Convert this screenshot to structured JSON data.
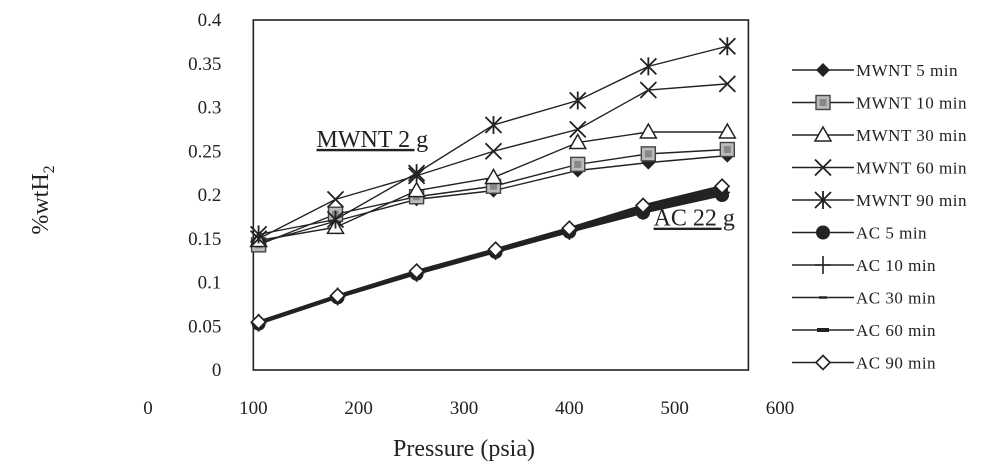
{
  "chart_data": {
    "type": "line",
    "xlabel": "Pressure (psia)",
    "ylabel_main": "%wtH",
    "ylabel_sub": "2",
    "xlim": [
      0,
      600
    ],
    "ylim": [
      0,
      0.4
    ],
    "xticks": [
      "0",
      "100",
      "200",
      "300",
      "400",
      "500",
      "600"
    ],
    "yticks": [
      "0",
      "0.05",
      "0.1",
      "0.15",
      "0.2",
      "0.25",
      "0.3",
      "0.35",
      "0.4"
    ],
    "grid": false,
    "legend_position": "right",
    "annotations": [
      {
        "text": "MWNT 2 g",
        "x": 160,
        "y": 0.255
      },
      {
        "text": "AC 22 g",
        "x": 480,
        "y": 0.165
      }
    ],
    "series": [
      {
        "name": "MWNT 5 min",
        "marker": "diamond-filled",
        "x": [
          105,
          178,
          255,
          328,
          408,
          475,
          550
        ],
        "y": [
          0.145,
          0.17,
          0.195,
          0.205,
          0.228,
          0.237,
          0.245
        ]
      },
      {
        "name": "MWNT 10 min",
        "marker": "square-boxed",
        "x": [
          105,
          178,
          255,
          328,
          408,
          475,
          550
        ],
        "y": [
          0.143,
          0.178,
          0.198,
          0.21,
          0.235,
          0.247,
          0.252
        ]
      },
      {
        "name": "MWNT 30 min",
        "marker": "triangle",
        "x": [
          105,
          178,
          255,
          328,
          408,
          475,
          550
        ],
        "y": [
          0.148,
          0.163,
          0.205,
          0.22,
          0.26,
          0.272,
          0.272
        ]
      },
      {
        "name": "MWNT 60 min",
        "marker": "x",
        "x": [
          105,
          178,
          255,
          328,
          408,
          475,
          550
        ],
        "y": [
          0.15,
          0.195,
          0.222,
          0.25,
          0.275,
          0.32,
          0.327
        ]
      },
      {
        "name": "MWNT 90 min",
        "marker": "asterisk",
        "x": [
          105,
          178,
          255,
          328,
          408,
          475,
          550
        ],
        "y": [
          0.155,
          0.172,
          0.225,
          0.28,
          0.308,
          0.347,
          0.37
        ]
      },
      {
        "name": "AC 5 min",
        "marker": "circle-filled",
        "x": [
          105,
          180,
          255,
          330,
          400,
          470,
          545
        ],
        "y": [
          0.053,
          0.083,
          0.11,
          0.135,
          0.158,
          0.18,
          0.2
        ]
      },
      {
        "name": "AC 10 min",
        "marker": "plus",
        "x": [
          105,
          180,
          255,
          330,
          400,
          470,
          545
        ],
        "y": [
          0.054,
          0.084,
          0.111,
          0.136,
          0.159,
          0.182,
          0.203
        ]
      },
      {
        "name": "AC 30 min",
        "marker": "dash",
        "x": [
          105,
          180,
          255,
          330,
          400,
          470,
          545
        ],
        "y": [
          0.054,
          0.084,
          0.112,
          0.137,
          0.16,
          0.184,
          0.205
        ]
      },
      {
        "name": "AC 60 min",
        "marker": "bar",
        "x": [
          105,
          180,
          255,
          330,
          400,
          470,
          545
        ],
        "y": [
          0.055,
          0.085,
          0.112,
          0.137,
          0.161,
          0.186,
          0.207
        ]
      },
      {
        "name": "AC 90 min",
        "marker": "diamond-open",
        "x": [
          105,
          180,
          255,
          330,
          400,
          470,
          545
        ],
        "y": [
          0.055,
          0.085,
          0.113,
          0.138,
          0.162,
          0.188,
          0.21
        ]
      }
    ]
  }
}
